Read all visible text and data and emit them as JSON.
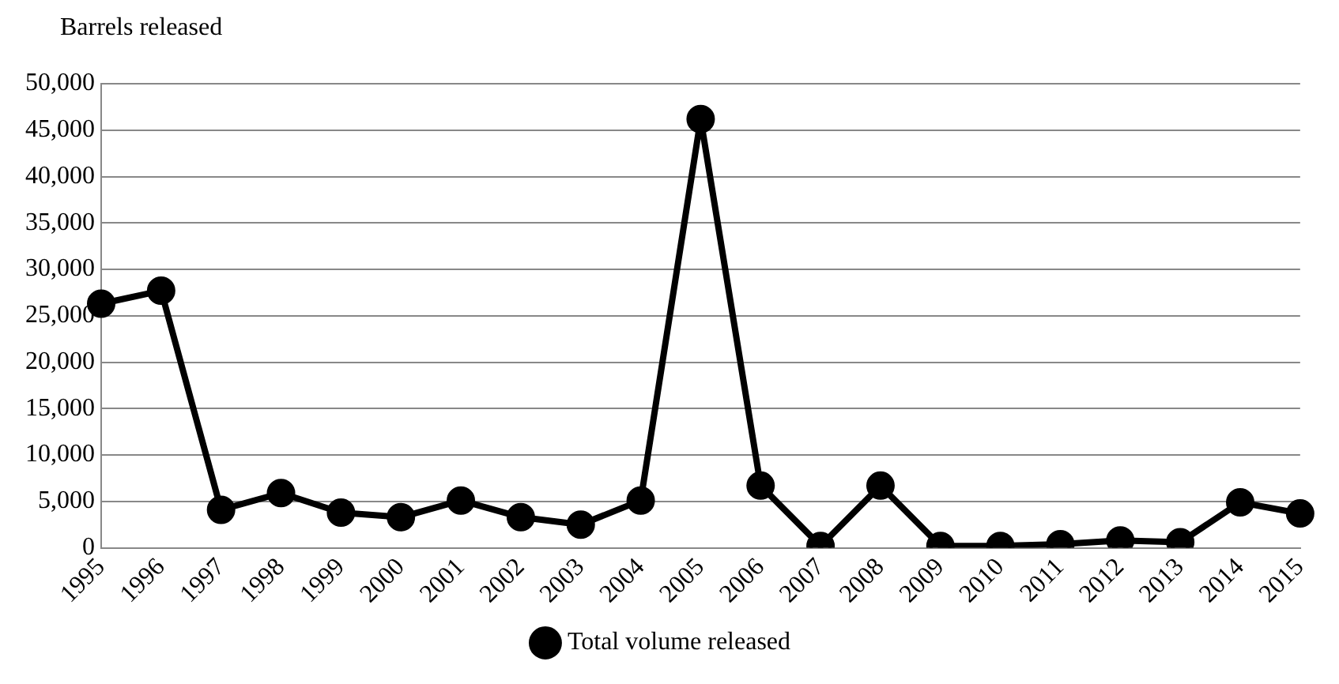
{
  "chart_data": {
    "type": "line",
    "ylabel": "Barrels released",
    "categories": [
      "1995",
      "1996",
      "1997",
      "1998",
      "1999",
      "2000",
      "2001",
      "2002",
      "2003",
      "2004",
      "2005",
      "2006",
      "2007",
      "2008",
      "2009",
      "2010",
      "2011",
      "2012",
      "2013",
      "2014",
      "2015"
    ],
    "series": [
      {
        "name": "Total volume released",
        "color": "#000000",
        "values": [
          26300,
          27700,
          4100,
          5900,
          3800,
          3300,
          5100,
          3300,
          2500,
          5100,
          46200,
          6700,
          200,
          6700,
          200,
          200,
          400,
          800,
          600,
          4900,
          3700
        ]
      }
    ],
    "ylim": [
      0,
      50000
    ],
    "yticks": [
      0,
      {
        "value": 5000,
        "label": "5,000"
      },
      {
        "value": 10000,
        "label": "10,000"
      },
      {
        "value": 15000,
        "label": "15,000"
      },
      {
        "value": 20000,
        "label": "20,000"
      },
      {
        "value": 25000,
        "label": "25,000"
      },
      {
        "value": 30000,
        "label": "30,000"
      },
      {
        "value": 35000,
        "label": "35,000"
      },
      {
        "value": 40000,
        "label": "40,000"
      },
      {
        "value": 45000,
        "label": "45,000"
      },
      {
        "value": 50000,
        "label": "50,000"
      }
    ],
    "grid": "y",
    "legend": "bottom",
    "marker": "circle",
    "line_style": "solid"
  }
}
